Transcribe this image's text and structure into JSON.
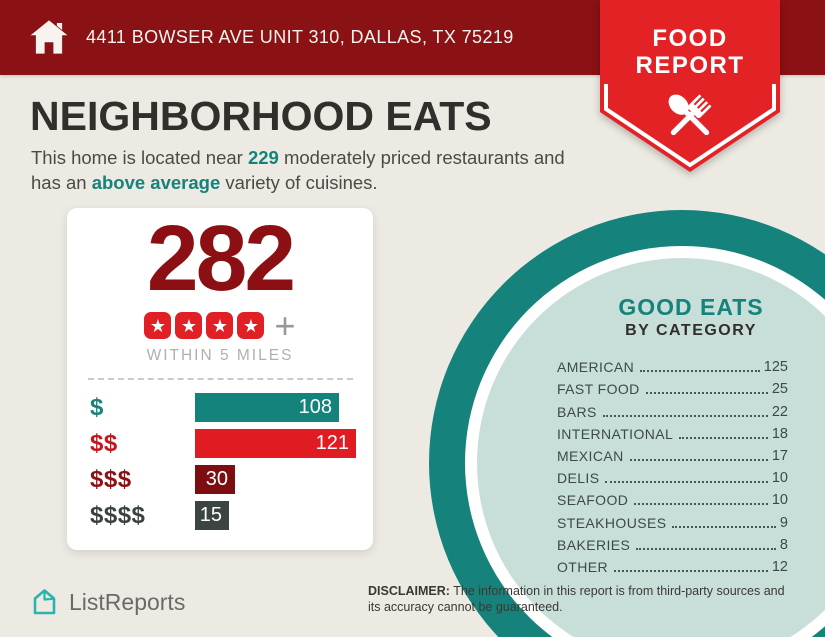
{
  "banner": {
    "address": "4411 BOWSER AVE UNIT 310, DALLAS, TX 75219"
  },
  "badge": {
    "line1": "FOOD",
    "line2": "REPORT",
    "icon": "crossed-spoon-fork-icon"
  },
  "header": {
    "title": "NEIGHBORHOOD EATS",
    "subtitle_line1_pre": "This home is located near ",
    "subtitle_line1_highlight": "229",
    "subtitle_line1_post": " moderately priced restaurants and",
    "subtitle_line2_pre": "has an ",
    "subtitle_line2_highlight": "above average",
    "subtitle_line2_post": " variety of cuisines."
  },
  "summary_card": {
    "total": "282",
    "rating_stars": 4,
    "rating_star_glyph": "★",
    "rating_plus": "+",
    "radius_label": "WITHIN 5 MILES"
  },
  "chart_data": [
    {
      "type": "bar",
      "orientation": "horizontal",
      "title": "282 WITHIN 5 MILES",
      "categories": [
        "$",
        "$$",
        "$$$",
        "$$$$"
      ],
      "values": [
        108,
        121,
        30,
        15
      ],
      "bar_colors": [
        "#13837B",
        "#E01B22",
        "#7C0E11",
        "#3C4442"
      ],
      "label_colors": [
        "#1B8277",
        "#C4161D",
        "#8C1014",
        "#3A4240"
      ],
      "xlim": [
        0,
        121
      ],
      "value_labels": "inside-right",
      "grid": false,
      "legend": "none"
    },
    {
      "type": "table",
      "title": "GOOD EATS BY CATEGORY",
      "categories": [
        "AMERICAN",
        "FAST FOOD",
        "BARS",
        "INTERNATIONAL",
        "MEXICAN",
        "DELIS",
        "SEAFOOD",
        "STEAKHOUSES",
        "BAKERIES",
        "OTHER"
      ],
      "values": [
        125,
        25,
        22,
        18,
        17,
        10,
        10,
        9,
        8,
        12
      ]
    }
  ],
  "good_eats": {
    "title": "GOOD EATS",
    "subtitle": "BY CATEGORY"
  },
  "footer": {
    "logo_text": "ListReports",
    "disclaimer_label": "DISCLAIMER:",
    "disclaimer_text": " The information in this report is from third-party sources and its accuracy cannot be guaranteed."
  },
  "colors": {
    "banner_maroon": "#8A1114",
    "badge_red": "#E32226",
    "accent_teal": "#15837B",
    "big_number_red": "#8C0F13",
    "mint_fill": "#C8DFD9",
    "background_cream": "#EDEAE3",
    "logo_teal": "#2BB3AE",
    "title_charcoal": "#312F2B"
  }
}
